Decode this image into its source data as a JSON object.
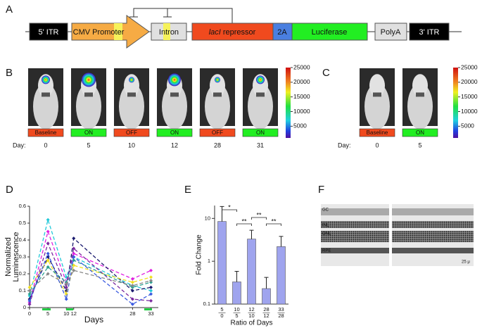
{
  "panel_labels": [
    "A",
    "B",
    "C",
    "D",
    "E",
    "F"
  ],
  "construct": {
    "elements": [
      {
        "text": "5' ITR"
      },
      {
        "text": "CMV Promoter"
      },
      {
        "text": "Intron"
      },
      {
        "italic": "lacI",
        "text": "repressor"
      },
      {
        "text": "2A"
      },
      {
        "text": "Luciferase"
      },
      {
        "text": "PolyA"
      },
      {
        "text": "3' ITR"
      }
    ]
  },
  "imaging_b": {
    "states": [
      "Baseline",
      "ON",
      "OFF",
      "ON",
      "OFF",
      "ON"
    ],
    "day_label": "Day:",
    "days": [
      0,
      5,
      10,
      12,
      28,
      31
    ],
    "colorbar": {
      "lim": [
        1000,
        25000
      ],
      "ticks": [
        25000,
        20000,
        15000,
        10000,
        5000
      ]
    }
  },
  "imaging_c": {
    "states": [
      "Baseline",
      "ON"
    ],
    "day_label": "Day:",
    "days": [
      0,
      5
    ],
    "colorbar": {
      "lim": [
        1000,
        25000
      ],
      "ticks": [
        25000,
        20000,
        15000,
        10000,
        5000
      ]
    }
  },
  "chart_data": [
    {
      "type": "line",
      "xlabel": "Days",
      "ylabel": [
        "Normalized",
        "Luminescence"
      ],
      "x": [
        0,
        5,
        10,
        12,
        28,
        33
      ],
      "xlim": [
        0,
        35
      ],
      "xticks": [
        0,
        5,
        10,
        12,
        28,
        33
      ],
      "ylim": [
        0,
        0.6
      ],
      "yticks": [
        0,
        0.1,
        0.2,
        0.3,
        0.4,
        0.5,
        0.6
      ],
      "series": [
        {
          "color": "#22c8d8",
          "values": [
            0.07,
            0.52,
            0.18,
            0.3,
            0.13,
            0.1
          ]
        },
        {
          "color": "#e020e0",
          "values": [
            0.03,
            0.45,
            0.15,
            0.32,
            0.17,
            0.22
          ]
        },
        {
          "color": "#1a1a6e",
          "values": [
            0.05,
            0.3,
            0.1,
            0.41,
            0.1,
            0.12
          ]
        },
        {
          "color": "#f0e020",
          "values": [
            0.12,
            0.28,
            0.08,
            0.25,
            0.15,
            0.18
          ]
        },
        {
          "color": "#7a2aa0",
          "values": [
            0.02,
            0.38,
            0.12,
            0.35,
            0.05,
            0.04
          ]
        },
        {
          "color": "#2aa090",
          "values": [
            0.08,
            0.24,
            0.15,
            0.28,
            0.12,
            0.15
          ]
        },
        {
          "color": "#888888",
          "values": [
            0.1,
            0.2,
            0.14,
            0.22,
            0.13,
            0.16
          ]
        },
        {
          "color": "#3a5ae0",
          "values": [
            0.04,
            0.32,
            0.05,
            0.3,
            0.02,
            0.08
          ]
        }
      ]
    },
    {
      "type": "bar",
      "xlabel": "Ratio of Days",
      "ylabel": "Fold Change",
      "categories": [
        [
          "5",
          "0"
        ],
        [
          "10",
          "5"
        ],
        [
          "12",
          "10"
        ],
        [
          "28",
          "12"
        ],
        [
          "33",
          "28"
        ]
      ],
      "values": [
        8.5,
        0.33,
        3.3,
        0.23,
        2.2
      ],
      "errors": [
        10.5,
        0.25,
        2.0,
        0.19,
        1.6
      ],
      "color": "#9fa4ee",
      "log": true,
      "ylim": [
        0.1,
        20
      ],
      "yticks": [
        0.1,
        1,
        10
      ],
      "significance": [
        "*",
        "**",
        "**",
        "**"
      ]
    }
  ],
  "histology": {
    "labels": [
      "GC",
      "INL",
      "ONL",
      "RPE"
    ],
    "scale": "25 μ"
  }
}
